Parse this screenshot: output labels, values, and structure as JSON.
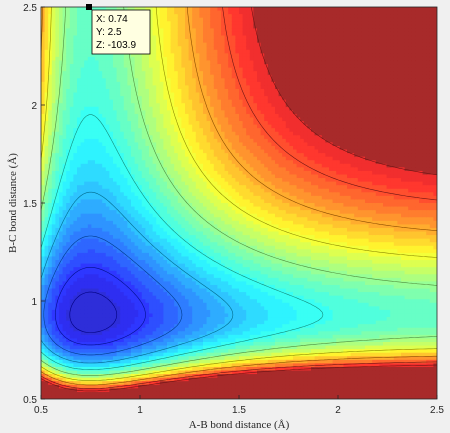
{
  "chart_data": {
    "type": "contour",
    "xlabel": "A-B bond distance (Å)",
    "ylabel": "B-C bond distance (Å)",
    "xlim": [
      0.5,
      2.5
    ],
    "ylim": [
      0.5,
      2.5
    ],
    "xticks": [
      "0.5",
      "1",
      "1.5",
      "2",
      "2.5"
    ],
    "yticks": [
      "0.5",
      "1",
      "1.5",
      "2",
      "2.5"
    ],
    "colormap": "jet",
    "filled": true,
    "grid": false,
    "datatip": {
      "point": {
        "x": 0.74,
        "y": 2.5,
        "z": -103.9
      },
      "lines": [
        "X: 0.74",
        "Y: 2.5",
        "Z: -103.9"
      ]
    }
  }
}
